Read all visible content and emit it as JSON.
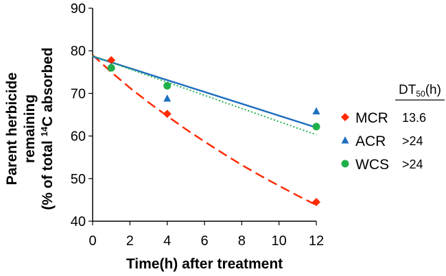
{
  "chart_data": {
    "type": "scatter",
    "title": "",
    "xlabel": "Time(h) after treatment",
    "ylabel": {
      "line1": "Parent herbicide",
      "line2": "remaining",
      "line3_prefix": "(% of total ",
      "line3_sup": "14",
      "line3_suffix": "C absorbed"
    },
    "xlim": [
      0,
      12
    ],
    "ylim": [
      40,
      90
    ],
    "xticks": [
      0,
      2,
      4,
      6,
      8,
      10,
      12
    ],
    "yticks": [
      40,
      50,
      60,
      70,
      80,
      90
    ],
    "grid": false,
    "legend_position": "right",
    "dt50_header": {
      "main": "DT",
      "sub": "50",
      "suffix": "(h)"
    },
    "series": [
      {
        "name": "MCR",
        "marker": "diamond",
        "color": "#ff2a00",
        "x": [
          1,
          4,
          12
        ],
        "y": [
          77.8,
          65.2,
          44.5
        ],
        "fit": {
          "style": "dashed",
          "x": [
            0,
            0.5,
            1,
            2,
            3,
            4,
            5,
            6,
            7,
            8,
            9,
            10,
            11,
            12
          ],
          "y": [
            79,
            77.0,
            75.0,
            71.3,
            67.9,
            64.7,
            61.6,
            58.7,
            55.9,
            53.2,
            50.7,
            48.3,
            46.0,
            43.8
          ]
        },
        "dt50": "13.6"
      },
      {
        "name": "ACR",
        "marker": "triangle",
        "color": "#1f6fc0",
        "x": [
          1,
          4,
          12
        ],
        "y": [
          76.3,
          68.8,
          65.8
        ],
        "fit": {
          "style": "solid",
          "x": [
            0,
            12
          ],
          "y": [
            78.7,
            62.0
          ]
        },
        "dt50": ">24"
      },
      {
        "name": "WCS",
        "marker": "circle",
        "color": "#1fb04a",
        "x": [
          1,
          4,
          12
        ],
        "y": [
          76.0,
          71.8,
          62.2
        ],
        "fit": {
          "style": "dotted",
          "x": [
            0,
            12
          ],
          "y": [
            78.8,
            60.3
          ]
        },
        "dt50": ">24"
      }
    ]
  }
}
